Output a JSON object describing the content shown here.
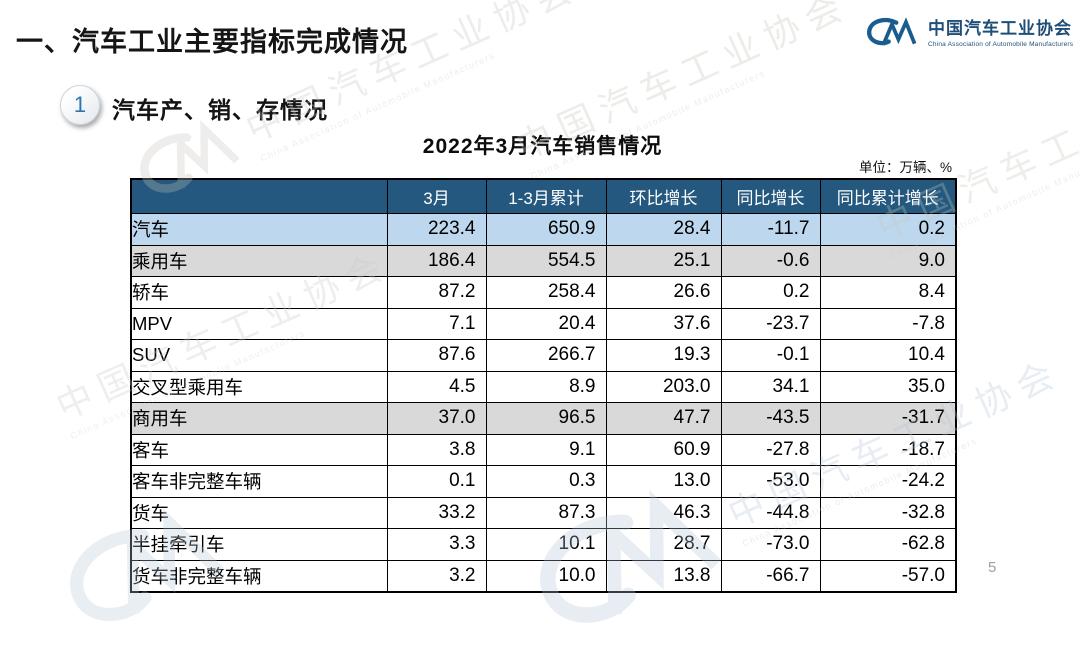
{
  "slide": {
    "title": "一、汽车工业主要指标完成情况",
    "section": {
      "badge": "1",
      "title": "汽车产、销、存情况"
    },
    "page_number": "5"
  },
  "logo": {
    "mark": "CM",
    "name_cn": "中国汽车工业协会",
    "name_en": "China Association of Automobile Manufacturers",
    "color": "#1F4E79"
  },
  "table": {
    "title": "2022年3月汽车销售情况",
    "unit_note": "单位：万辆、%",
    "header_bg": "#24587E",
    "row_highlight_blue": "#BDD7EE",
    "row_highlight_gray": "#D9D9D9",
    "headers": [
      "",
      "3月",
      "1-3月累计",
      "环比增长",
      "同比增长",
      "同比累计增长"
    ],
    "rows": [
      {
        "label": "汽车",
        "indent": 0,
        "bg": "blue",
        "values": [
          "223.4",
          "650.9",
          "28.4",
          "-11.7",
          "0.2"
        ]
      },
      {
        "label": "乘用车",
        "indent": 1,
        "bg": "gray",
        "values": [
          "186.4",
          "554.5",
          "25.1",
          "-0.6",
          "9.0"
        ]
      },
      {
        "label": "轿车",
        "indent": 2,
        "bg": "white",
        "values": [
          "87.2",
          "258.4",
          "26.6",
          "0.2",
          "8.4"
        ]
      },
      {
        "label": "MPV",
        "indent": 2,
        "bg": "white",
        "values": [
          "7.1",
          "20.4",
          "37.6",
          "-23.7",
          "-7.8"
        ]
      },
      {
        "label": "SUV",
        "indent": 2,
        "bg": "white",
        "values": [
          "87.6",
          "266.7",
          "19.3",
          "-0.1",
          "10.4"
        ]
      },
      {
        "label": "交叉型乘用车",
        "indent": 2,
        "bg": "white",
        "values": [
          "4.5",
          "8.9",
          "203.0",
          "34.1",
          "35.0"
        ]
      },
      {
        "label": "商用车",
        "indent": 1,
        "bg": "gray",
        "values": [
          "37.0",
          "96.5",
          "47.7",
          "-43.5",
          "-31.7"
        ]
      },
      {
        "label": "客车",
        "indent": 2,
        "bg": "white",
        "values": [
          "3.8",
          "9.1",
          "60.9",
          "-27.8",
          "-18.7"
        ]
      },
      {
        "label": "客车非完整车辆",
        "indent": 3,
        "bg": "white",
        "values": [
          "0.1",
          "0.3",
          "13.0",
          "-53.0",
          "-24.2"
        ]
      },
      {
        "label": "货车",
        "indent": 2,
        "bg": "white",
        "values": [
          "33.2",
          "87.3",
          "46.3",
          "-44.8",
          "-32.8"
        ]
      },
      {
        "label": "半挂牵引车",
        "indent": 3,
        "bg": "white",
        "values": [
          "3.3",
          "10.1",
          "28.7",
          "-73.0",
          "-62.8"
        ]
      },
      {
        "label": "货车非完整车辆",
        "indent": 3,
        "bg": "white",
        "values": [
          "3.2",
          "10.0",
          "13.8",
          "-66.7",
          "-57.0"
        ]
      }
    ]
  },
  "watermark": {
    "text_cn": "中国汽车工业协会",
    "text_en": "China Association of Automobile Manufacturers",
    "colors": {
      "gray": "#C8C4BF",
      "blue": "#AFC3D6",
      "green": "#BFC9B4"
    }
  }
}
